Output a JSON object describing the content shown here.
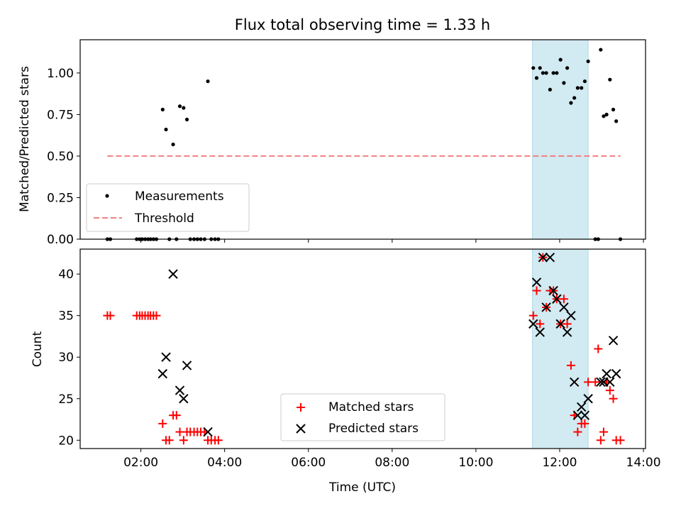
{
  "title": "Flux total observing time = 1.33 h",
  "colors": {
    "measurement": "#000000",
    "threshold": "#f08080",
    "matched": "#ff0000",
    "predicted": "#000000",
    "highlight": "#add8e6"
  },
  "chart_data": [
    {
      "type": "scatter",
      "ylabel": "Matched/Predicted stars",
      "ylim": [
        0,
        1.2
      ],
      "xlim": [
        0.55,
        14.05
      ],
      "yticks": [
        "0.00",
        "0.25",
        "0.50",
        "0.75",
        "1.00"
      ],
      "grid": false,
      "legend": {
        "placement": "lower-left",
        "entries": [
          "Measurements",
          "Threshold"
        ]
      },
      "highlight_band": {
        "x": [
          11.35,
          12.68
        ]
      },
      "threshold": {
        "name": "Threshold",
        "y": 0.5,
        "x": [
          1.2,
          13.45
        ]
      },
      "series": [
        {
          "name": "Measurements",
          "marker": "dot",
          "points": [
            [
              1.2,
              0
            ],
            [
              1.27,
              0
            ],
            [
              1.9,
              0
            ],
            [
              1.97,
              0
            ],
            [
              2.03,
              0
            ],
            [
              2.1,
              0
            ],
            [
              2.17,
              0
            ],
            [
              2.23,
              0
            ],
            [
              2.3,
              0
            ],
            [
              2.37,
              0
            ],
            [
              2.52,
              0.78
            ],
            [
              2.6,
              0.66
            ],
            [
              2.68,
              0
            ],
            [
              2.77,
              0.57
            ],
            [
              2.85,
              0
            ],
            [
              2.93,
              0.8
            ],
            [
              3.02,
              0.79
            ],
            [
              3.1,
              0.72
            ],
            [
              3.18,
              0
            ],
            [
              3.27,
              0
            ],
            [
              3.35,
              0
            ],
            [
              3.43,
              0
            ],
            [
              3.52,
              0
            ],
            [
              3.6,
              0.95
            ],
            [
              3.68,
              0
            ],
            [
              3.77,
              0
            ],
            [
              3.85,
              0
            ],
            [
              11.37,
              1.03
            ],
            [
              11.45,
              0.97
            ],
            [
              11.53,
              1.03
            ],
            [
              11.6,
              1.0
            ],
            [
              11.68,
              1.0
            ],
            [
              11.77,
              0.9
            ],
            [
              11.85,
              1.0
            ],
            [
              11.93,
              1.0
            ],
            [
              12.02,
              1.08
            ],
            [
              12.1,
              0.94
            ],
            [
              12.18,
              1.03
            ],
            [
              12.27,
              0.82
            ],
            [
              12.35,
              0.85
            ],
            [
              12.43,
              0.91
            ],
            [
              12.52,
              0.91
            ],
            [
              12.6,
              0.95
            ],
            [
              12.68,
              1.07
            ],
            [
              12.85,
              0
            ],
            [
              12.92,
              0
            ],
            [
              12.98,
              1.14
            ],
            [
              13.05,
              0.74
            ],
            [
              13.12,
              0.75
            ],
            [
              13.2,
              0.96
            ],
            [
              13.28,
              0.78
            ],
            [
              13.35,
              0.71
            ],
            [
              13.45,
              0
            ]
          ]
        }
      ]
    },
    {
      "type": "scatter",
      "xlabel": "Time (UTC)",
      "ylabel": "Count",
      "ylim": [
        19,
        43
      ],
      "xlim": [
        0.55,
        14.05
      ],
      "xticks": [
        {
          "v": 2,
          "label": "02:00"
        },
        {
          "v": 4,
          "label": "04:00"
        },
        {
          "v": 6,
          "label": "06:00"
        },
        {
          "v": 8,
          "label": "08:00"
        },
        {
          "v": 10,
          "label": "10:00"
        },
        {
          "v": 12,
          "label": "12:00"
        },
        {
          "v": 14,
          "label": "14:00"
        }
      ],
      "yticks": [
        "20",
        "25",
        "30",
        "35",
        "40"
      ],
      "grid": false,
      "legend": {
        "placement": "lower-center",
        "entries": [
          "Matched stars",
          "Predicted stars"
        ]
      },
      "highlight_band": {
        "x": [
          11.35,
          12.68
        ]
      },
      "series": [
        {
          "name": "Matched stars",
          "marker": "plus",
          "points": [
            [
              1.2,
              35
            ],
            [
              1.27,
              35
            ],
            [
              1.9,
              35
            ],
            [
              1.97,
              35
            ],
            [
              2.03,
              35
            ],
            [
              2.1,
              35
            ],
            [
              2.17,
              35
            ],
            [
              2.23,
              35
            ],
            [
              2.3,
              35
            ],
            [
              2.37,
              35
            ],
            [
              2.52,
              22
            ],
            [
              2.6,
              20
            ],
            [
              2.68,
              20
            ],
            [
              2.77,
              23
            ],
            [
              2.85,
              23
            ],
            [
              2.93,
              21
            ],
            [
              3.02,
              20
            ],
            [
              3.1,
              21
            ],
            [
              3.18,
              21
            ],
            [
              3.27,
              21
            ],
            [
              3.35,
              21
            ],
            [
              3.43,
              21
            ],
            [
              3.52,
              21
            ],
            [
              3.6,
              20
            ],
            [
              3.68,
              20
            ],
            [
              3.77,
              20
            ],
            [
              3.85,
              20
            ],
            [
              11.37,
              35
            ],
            [
              11.45,
              38
            ],
            [
              11.53,
              34
            ],
            [
              11.6,
              42
            ],
            [
              11.68,
              36
            ],
            [
              11.77,
              38
            ],
            [
              11.85,
              38
            ],
            [
              11.93,
              37
            ],
            [
              12.02,
              34
            ],
            [
              12.1,
              37
            ],
            [
              12.18,
              34
            ],
            [
              12.27,
              29
            ],
            [
              12.35,
              23
            ],
            [
              12.43,
              21
            ],
            [
              12.52,
              22
            ],
            [
              12.6,
              22
            ],
            [
              12.68,
              27
            ],
            [
              12.85,
              27
            ],
            [
              12.92,
              31
            ],
            [
              12.98,
              20
            ],
            [
              13.05,
              21
            ],
            [
              13.12,
              27
            ],
            [
              13.2,
              26
            ],
            [
              13.28,
              25
            ],
            [
              13.35,
              20
            ],
            [
              13.45,
              20
            ]
          ]
        },
        {
          "name": "Predicted stars",
          "marker": "x",
          "points": [
            [
              2.52,
              28
            ],
            [
              2.6,
              30
            ],
            [
              2.77,
              40
            ],
            [
              2.93,
              26
            ],
            [
              3.02,
              25
            ],
            [
              3.1,
              29
            ],
            [
              3.6,
              21
            ],
            [
              11.37,
              34
            ],
            [
              11.45,
              39
            ],
            [
              11.53,
              33
            ],
            [
              11.6,
              42
            ],
            [
              11.68,
              36
            ],
            [
              11.77,
              42
            ],
            [
              11.85,
              38
            ],
            [
              11.93,
              37
            ],
            [
              12.02,
              34
            ],
            [
              12.1,
              36
            ],
            [
              12.18,
              33
            ],
            [
              12.27,
              35
            ],
            [
              12.35,
              27
            ],
            [
              12.43,
              23
            ],
            [
              12.52,
              24
            ],
            [
              12.6,
              23
            ],
            [
              12.68,
              25
            ],
            [
              12.98,
              27
            ],
            [
              13.05,
              27
            ],
            [
              13.12,
              28
            ],
            [
              13.2,
              27
            ],
            [
              13.28,
              32
            ],
            [
              13.35,
              28
            ]
          ]
        }
      ]
    }
  ]
}
